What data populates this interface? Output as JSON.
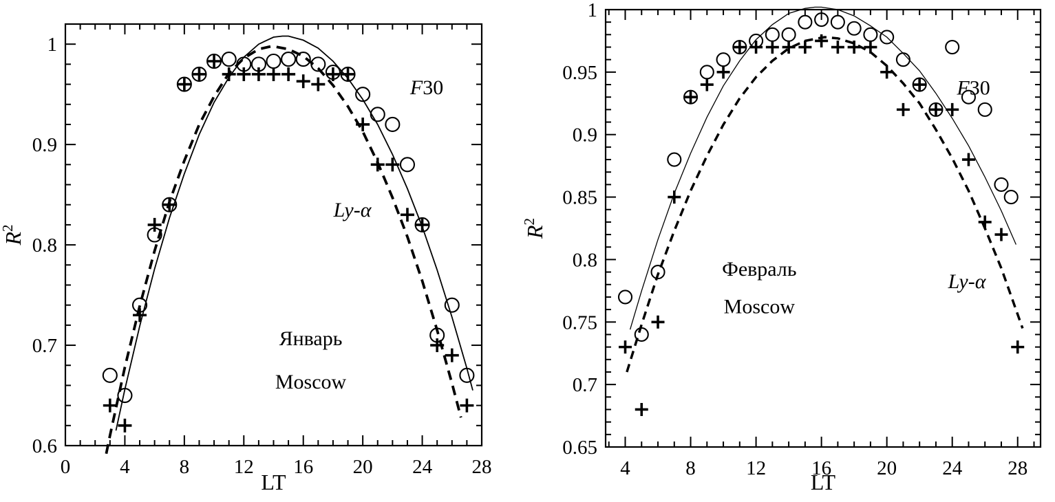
{
  "figure": {
    "background": "#ffffff",
    "ink": "#000000"
  },
  "chart_data": [
    {
      "type": "scatter",
      "title": "",
      "xlabel": "LT",
      "ylabel_parts": [
        {
          "t": "R",
          "i": true
        },
        {
          "t": "2",
          "sup": true
        }
      ],
      "xlim": [
        0,
        28
      ],
      "ylim": [
        0.6,
        1.02
      ],
      "xticks": [
        0,
        4,
        8,
        12,
        16,
        20,
        24,
        28
      ],
      "xminor_step": 1,
      "yticks": [
        0.6,
        0.7,
        0.8,
        0.9,
        1
      ],
      "ytick_labels": [
        "0.6",
        "0.7",
        "0.8",
        "0.9",
        "1"
      ],
      "yminor_step": 0.02,
      "grid": false,
      "legend": "in-plot text annotations",
      "annotations": [
        {
          "x": 24.3,
          "y": 0.95,
          "parts": [
            {
              "t": "F",
              "i": true
            },
            {
              "t": "30"
            }
          ]
        },
        {
          "x": 19.3,
          "y": 0.828,
          "parts": [
            {
              "t": "Ly",
              "i": true
            },
            {
              "t": "-"
            },
            {
              "t": "α",
              "i": true
            }
          ]
        },
        {
          "x": 16.5,
          "y": 0.7,
          "parts": [
            {
              "t": "Январь"
            }
          ]
        },
        {
          "x": 16.5,
          "y": 0.657,
          "parts": [
            {
              "t": "Moscow"
            }
          ]
        }
      ],
      "series": [
        {
          "name": "F30",
          "kind": "markers",
          "marker": "circle",
          "x": [
            3,
            4,
            5,
            6,
            7,
            8,
            9,
            10,
            11,
            12,
            13,
            14,
            15,
            16,
            17,
            18,
            19,
            20,
            21,
            22,
            23,
            24,
            25,
            26,
            27
          ],
          "y": [
            0.67,
            0.65,
            0.74,
            0.81,
            0.84,
            0.96,
            0.97,
            0.983,
            0.985,
            0.98,
            0.98,
            0.983,
            0.985,
            0.985,
            0.98,
            0.972,
            0.97,
            0.95,
            0.93,
            0.92,
            0.88,
            0.82,
            0.71,
            0.74,
            0.67
          ]
        },
        {
          "name": "Ly-alpha",
          "kind": "markers",
          "marker": "plus",
          "x": [
            3,
            4,
            5,
            6,
            7,
            8,
            9,
            10,
            11,
            12,
            13,
            14,
            15,
            16,
            17,
            18,
            19,
            20,
            21,
            22,
            23,
            24,
            25,
            26,
            27
          ],
          "y": [
            0.64,
            0.62,
            0.73,
            0.82,
            0.84,
            0.96,
            0.97,
            0.983,
            0.97,
            0.97,
            0.97,
            0.97,
            0.97,
            0.963,
            0.96,
            0.97,
            0.97,
            0.92,
            0.88,
            0.88,
            0.83,
            0.82,
            0.7,
            0.69,
            0.64
          ]
        },
        {
          "name": "F30 fit",
          "kind": "line",
          "style": "solid",
          "x": [
            3.4,
            4,
            5,
            6,
            7,
            8,
            9,
            10,
            11,
            12,
            13,
            14,
            14.6,
            15,
            16,
            17,
            18,
            19,
            20,
            21,
            22,
            23,
            24,
            25,
            26,
            27,
            27.4
          ],
          "y": [
            0.615,
            0.656,
            0.719,
            0.776,
            0.827,
            0.871,
            0.91,
            0.942,
            0.967,
            0.987,
            1.0,
            1.007,
            1.008,
            1.008,
            1.004,
            0.996,
            0.983,
            0.966,
            0.945,
            0.92,
            0.89,
            0.856,
            0.818,
            0.775,
            0.728,
            0.677,
            0.655
          ]
        },
        {
          "name": "Ly-alpha fit",
          "kind": "line",
          "style": "dashed",
          "x": [
            2.75,
            3,
            4,
            5,
            6,
            7,
            8,
            9,
            10,
            11,
            12,
            13,
            13.9,
            15,
            16,
            17,
            18,
            19,
            20,
            21,
            22,
            23,
            24,
            25,
            26,
            26.6
          ],
          "y": [
            0.592,
            0.61,
            0.678,
            0.739,
            0.794,
            0.843,
            0.884,
            0.92,
            0.948,
            0.971,
            0.986,
            0.995,
            0.998,
            0.995,
            0.988,
            0.976,
            0.959,
            0.938,
            0.913,
            0.882,
            0.847,
            0.808,
            0.764,
            0.715,
            0.662,
            0.628
          ]
        }
      ]
    },
    {
      "type": "scatter",
      "title": "",
      "xlabel": "LT",
      "ylabel_parts": [
        {
          "t": "R",
          "i": true
        },
        {
          "t": "2",
          "sup": true
        }
      ],
      "xlim": [
        2.8,
        29.4
      ],
      "ylim": [
        0.65,
        1.0
      ],
      "xticks": [
        4,
        8,
        12,
        16,
        20,
        24,
        28
      ],
      "xminor_step": 1,
      "yticks": [
        0.65,
        0.7,
        0.75,
        0.8,
        0.85,
        0.9,
        0.95,
        1
      ],
      "ytick_labels": [
        "0.65",
        "0.7",
        "0.75",
        "0.8",
        "0.85",
        "0.9",
        "0.95",
        "1"
      ],
      "yminor_step": 0.01,
      "grid": false,
      "legend": "in-plot text annotations",
      "annotations": [
        {
          "x": 25.3,
          "y": 0.932,
          "parts": [
            {
              "t": "F",
              "i": true
            },
            {
              "t": "30"
            }
          ]
        },
        {
          "x": 24.9,
          "y": 0.777,
          "parts": [
            {
              "t": "Ly",
              "i": true
            },
            {
              "t": "-"
            },
            {
              "t": "α",
              "i": true
            }
          ]
        },
        {
          "x": 12.2,
          "y": 0.787,
          "parts": [
            {
              "t": "Февраль"
            }
          ]
        },
        {
          "x": 12.2,
          "y": 0.757,
          "parts": [
            {
              "t": "Moscow"
            }
          ]
        }
      ],
      "series": [
        {
          "name": "F30",
          "kind": "markers",
          "marker": "circle",
          "x": [
            4,
            5,
            6,
            7,
            8,
            9,
            10,
            11,
            12,
            13,
            14,
            15,
            16,
            17,
            18,
            19,
            20,
            21,
            22,
            23,
            24,
            25,
            26,
            27,
            27.6
          ],
          "y": [
            0.77,
            0.74,
            0.79,
            0.88,
            0.93,
            0.95,
            0.96,
            0.97,
            0.975,
            0.98,
            0.98,
            0.99,
            0.992,
            0.99,
            0.985,
            0.98,
            0.978,
            0.96,
            0.94,
            0.92,
            0.97,
            0.93,
            0.92,
            0.86,
            0.85
          ]
        },
        {
          "name": "Ly-alpha",
          "kind": "markers",
          "marker": "plus",
          "x": [
            4,
            5,
            6,
            7,
            8,
            9,
            10,
            11,
            12,
            13,
            14,
            15,
            16,
            17,
            18,
            19,
            20,
            21,
            22,
            23,
            24,
            25,
            26,
            27,
            28
          ],
          "y": [
            0.73,
            0.68,
            0.75,
            0.85,
            0.93,
            0.94,
            0.95,
            0.97,
            0.97,
            0.97,
            0.97,
            0.97,
            0.975,
            0.97,
            0.97,
            0.97,
            0.95,
            0.92,
            0.94,
            0.92,
            0.92,
            0.88,
            0.83,
            0.82,
            0.73
          ]
        },
        {
          "name": "F30 fit",
          "kind": "line",
          "style": "solid",
          "x": [
            4.3,
            5,
            6,
            7,
            8,
            9,
            10,
            11,
            12,
            13,
            14,
            15,
            15.6,
            16,
            17,
            18,
            19,
            20,
            21,
            22,
            23,
            24,
            25,
            26,
            27,
            27.9
          ],
          "y": [
            0.744,
            0.775,
            0.816,
            0.853,
            0.885,
            0.914,
            0.939,
            0.959,
            0.976,
            0.988,
            0.997,
            1.001,
            1.002,
            1.002,
            1.0,
            0.995,
            0.987,
            0.978,
            0.965,
            0.951,
            0.933,
            0.913,
            0.891,
            0.866,
            0.839,
            0.812
          ]
        },
        {
          "name": "Ly-alpha fit",
          "kind": "line",
          "style": "dashed",
          "x": [
            4.1,
            5,
            6,
            7,
            8,
            9,
            10,
            11,
            12,
            13,
            14,
            15,
            16.2,
            17,
            18,
            19,
            20,
            21,
            22,
            23,
            24,
            25,
            26,
            27,
            28.3
          ],
          "y": [
            0.71,
            0.748,
            0.788,
            0.823,
            0.855,
            0.883,
            0.908,
            0.929,
            0.946,
            0.959,
            0.969,
            0.975,
            0.978,
            0.977,
            0.973,
            0.966,
            0.955,
            0.941,
            0.925,
            0.904,
            0.881,
            0.855,
            0.825,
            0.793,
            0.745
          ]
        }
      ]
    }
  ]
}
